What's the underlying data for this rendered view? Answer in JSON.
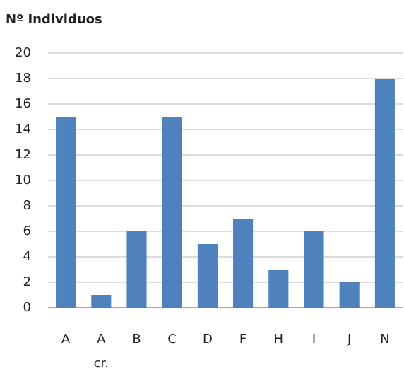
{
  "chart_data": {
    "type": "bar",
    "title": "Nº Individuos",
    "categories": [
      "A",
      "A cr.",
      "B",
      "C",
      "D",
      "F",
      "H",
      "I",
      "J",
      "N"
    ],
    "values": [
      15,
      1,
      6,
      15,
      5,
      7,
      3,
      6,
      2,
      18
    ],
    "color": "#4f81bd",
    "ylim": [
      0,
      20
    ],
    "yticks": [
      0,
      2,
      4,
      6,
      8,
      10,
      12,
      14,
      16,
      18,
      20
    ],
    "grid": true
  }
}
